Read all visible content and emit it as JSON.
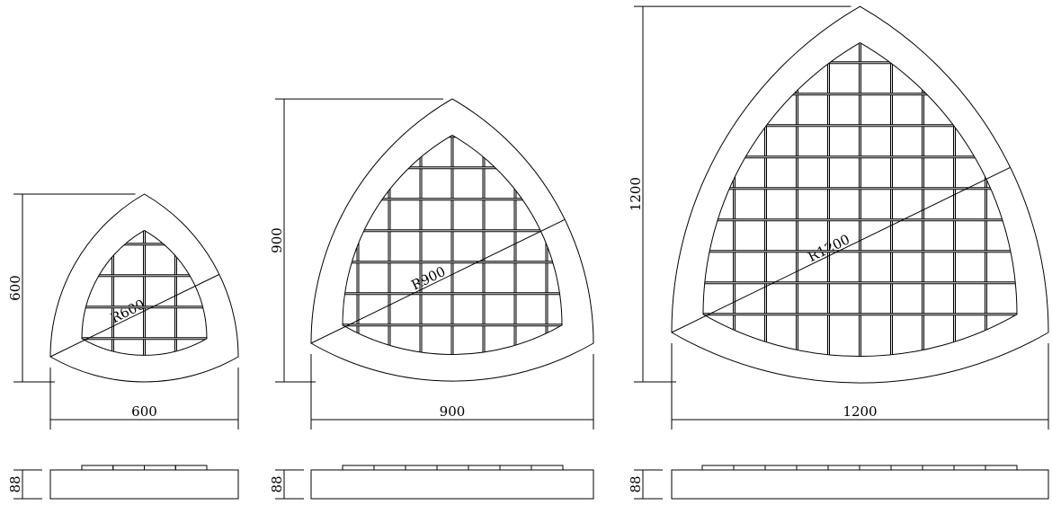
{
  "figures": [
    {
      "width_label": "600",
      "height_label": "600",
      "radius_label": "R600",
      "thickness_label": "88"
    },
    {
      "width_label": "900",
      "height_label": "900",
      "radius_label": "R900",
      "thickness_label": "88"
    },
    {
      "width_label": "1200",
      "height_label": "1200",
      "radius_label": "R1200",
      "thickness_label": "88"
    }
  ],
  "colors": {
    "line": "#000000",
    "background": "#ffffff"
  }
}
